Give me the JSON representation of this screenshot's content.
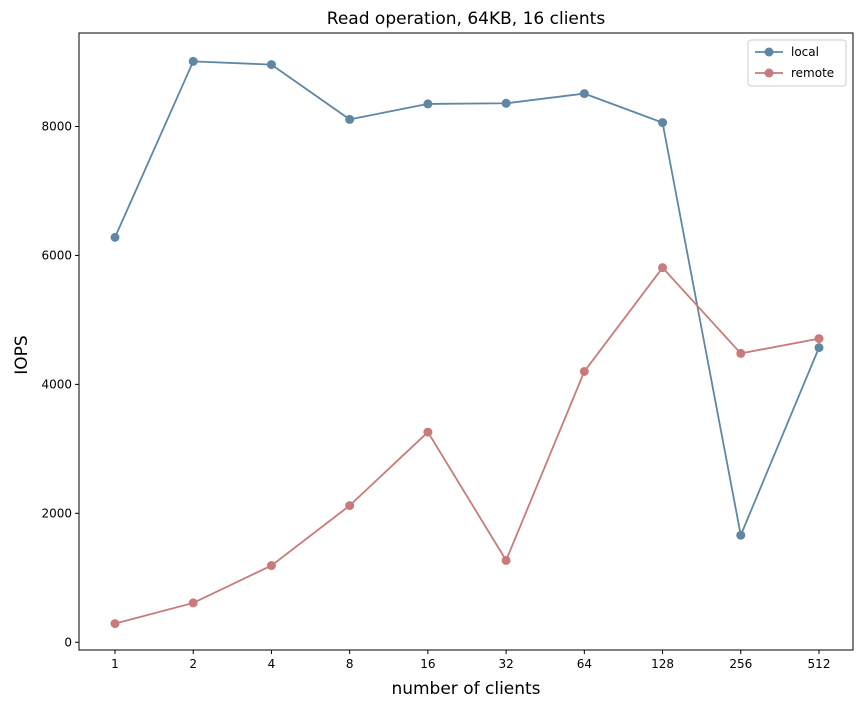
{
  "chart_data": {
    "type": "line",
    "title": "Read operation, 64KB, 16 clients",
    "xlabel": "number of clients",
    "ylabel": "IOPS",
    "categories": [
      "1",
      "2",
      "4",
      "8",
      "16",
      "32",
      "64",
      "128",
      "256",
      "512"
    ],
    "ylim": [
      -120,
      9450
    ],
    "yticks": [
      0,
      2000,
      4000,
      6000,
      8000
    ],
    "grid": false,
    "legend_position": "top-right",
    "series": [
      {
        "name": "local",
        "color": "#5f87a3",
        "values": [
          6280,
          9010,
          8960,
          8110,
          8350,
          8360,
          8510,
          8060,
          1660,
          4570
        ]
      },
      {
        "name": "remote",
        "color": "#c97a7a",
        "values": [
          290,
          610,
          1190,
          2120,
          3260,
          1270,
          4200,
          5810,
          4480,
          4710
        ]
      }
    ]
  }
}
